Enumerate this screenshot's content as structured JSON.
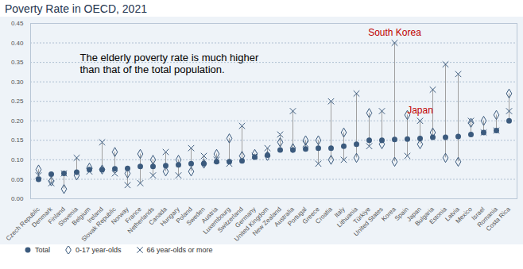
{
  "chart_data": {
    "type": "dot",
    "title": "Poverty Rate in OECD, 2021",
    "categories": [
      "Czech Republic",
      "Denmark",
      "Finland",
      "Slovenia",
      "Belgium",
      "Ireland",
      "Slovak Republic",
      "Norway",
      "France",
      "Netherlands",
      "Canada",
      "Hungary",
      "Poland",
      "Sweden",
      "Austria",
      "Luxembourg",
      "Switzerland",
      "Germany",
      "United Kingdom",
      "New Zealand",
      "Australia",
      "Portugal",
      "Greece",
      "Croatia",
      "Italy",
      "Lithuania",
      "Türkiye",
      "United States",
      "Korea",
      "Spain",
      "Japan",
      "Bulgaria",
      "Estonia",
      "Latvia",
      "Mexico",
      "Israel",
      "Romania",
      "Costa Rica"
    ],
    "series": [
      {
        "name": "Total",
        "color": "#3b5a7d",
        "marker": "circle",
        "values": [
          0.05,
          0.063,
          0.065,
          0.068,
          0.075,
          0.075,
          0.077,
          0.078,
          0.083,
          0.083,
          0.085,
          0.087,
          0.09,
          0.09,
          0.095,
          0.095,
          0.097,
          0.107,
          0.112,
          0.125,
          0.125,
          0.128,
          0.13,
          0.13,
          0.135,
          0.14,
          0.15,
          0.15,
          0.152,
          0.153,
          0.155,
          0.158,
          0.158,
          0.16,
          0.165,
          0.17,
          0.175,
          0.2
        ]
      },
      {
        "name": "0-17 year-olds",
        "color": "#3b5a7d",
        "marker": "diamond",
        "values": [
          0.075,
          0.045,
          0.025,
          0.06,
          0.08,
          0.075,
          0.12,
          0.065,
          0.115,
          0.1,
          0.07,
          0.1,
          0.07,
          0.09,
          0.115,
          0.155,
          0.11,
          0.115,
          0.11,
          0.145,
          0.13,
          0.15,
          0.15,
          0.1,
          0.17,
          0.105,
          0.22,
          0.14,
          0.095,
          0.215,
          0.14,
          0.17,
          0.105,
          0.095,
          0.195,
          0.2,
          0.215,
          0.27
        ]
      },
      {
        "name": "66 year-olds or more",
        "color": "#3b5a7d",
        "marker": "times",
        "values": [
          0.06,
          0.04,
          0.065,
          0.105,
          0.07,
          0.145,
          0.065,
          0.035,
          0.04,
          0.06,
          0.12,
          0.06,
          0.13,
          0.11,
          0.1,
          0.09,
          0.187,
          0.11,
          0.13,
          0.165,
          0.225,
          0.14,
          0.09,
          0.25,
          0.1,
          0.27,
          0.135,
          0.225,
          0.4,
          0.11,
          0.2,
          0.28,
          0.345,
          0.32,
          0.2,
          0.17,
          0.175,
          0.225
        ]
      }
    ],
    "ylim": [
      0,
      0.45
    ],
    "yticks": [
      {
        "value": 0,
        "label": "0.00"
      },
      {
        "value": 0.05,
        "label": "0.05"
      },
      {
        "value": 0.1,
        "label": "0.10"
      },
      {
        "value": 0.15,
        "label": "0.15"
      },
      {
        "value": 0.2,
        "label": "0.20"
      },
      {
        "value": 0.25,
        "label": "0.25"
      },
      {
        "value": 0.3,
        "label": "0.30"
      },
      {
        "value": 0.35,
        "label": "0.35"
      },
      {
        "value": 0.4,
        "label": "0.40"
      },
      {
        "value": 0.45,
        "label": "0.45"
      }
    ],
    "grid": true,
    "legend": "bottom-left",
    "annotations": [
      {
        "text": "The elderly poverty rate is much higher\nthan that of the total population.",
        "color": "#000000"
      },
      {
        "text": "South Korea",
        "category": "Korea",
        "color": "#c00000"
      },
      {
        "text": "Japan",
        "category": "Japan",
        "color": "#c00000"
      }
    ]
  }
}
